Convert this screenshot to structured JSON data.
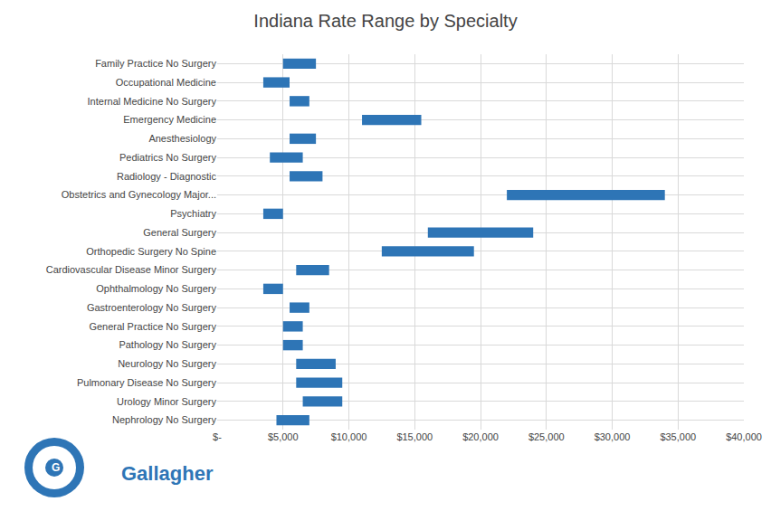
{
  "chart_data": {
    "type": "bar",
    "orientation": "horizontal",
    "title": "Indiana Rate Range by Specialty",
    "categories": [
      "Family Practice No Surgery",
      "Occupational Medicine",
      "Internal Medicine No Surgery",
      "Emergency Medicine",
      "Anesthesiology",
      "Pediatrics No Surgery",
      "Radiology - Diagnostic",
      "Obstetrics and Gynecology Major...",
      "Psychiatry",
      "General Surgery",
      "Orthopedic Surgery No Spine",
      "Cardiovascular Disease Minor Surgery",
      "Ophthalmology No Surgery",
      "Gastroenterology No Surgery",
      "General Practice No Surgery",
      "Pathology No Surgery",
      "Neurology No Surgery",
      "Pulmonary Disease No Surgery",
      "Urology Minor Surgery",
      "Nephrology No Surgery"
    ],
    "values": [
      [
        5000,
        7500
      ],
      [
        3500,
        5500
      ],
      [
        5500,
        7000
      ],
      [
        11000,
        15500
      ],
      [
        5500,
        7500
      ],
      [
        4000,
        6500
      ],
      [
        5500,
        8000
      ],
      [
        22000,
        34000
      ],
      [
        3500,
        5000
      ],
      [
        16000,
        24000
      ],
      [
        12500,
        19500
      ],
      [
        6000,
        8500
      ],
      [
        3500,
        5000
      ],
      [
        5500,
        7000
      ],
      [
        5000,
        6500
      ],
      [
        5000,
        6500
      ],
      [
        6000,
        9000
      ],
      [
        6000,
        9500
      ],
      [
        6500,
        9500
      ],
      [
        4500,
        7000
      ]
    ],
    "color": "#2e75b6",
    "xlim": [
      0,
      40000
    ],
    "xticks": [
      {
        "value": 0,
        "label": "$-"
      },
      {
        "value": 5000,
        "label": "$5,000"
      },
      {
        "value": 10000,
        "label": "$10,000"
      },
      {
        "value": 15000,
        "label": "$15,000"
      },
      {
        "value": 20000,
        "label": "$20,000"
      },
      {
        "value": 25000,
        "label": "$25,000"
      },
      {
        "value": 30000,
        "label": "$30,000"
      },
      {
        "value": 35000,
        "label": "$35,000"
      },
      {
        "value": 40000,
        "label": "$40,000"
      }
    ],
    "grid": true,
    "annotations": [
      {
        "text": "Gallagher"
      },
      {
        "text": "G"
      }
    ]
  }
}
